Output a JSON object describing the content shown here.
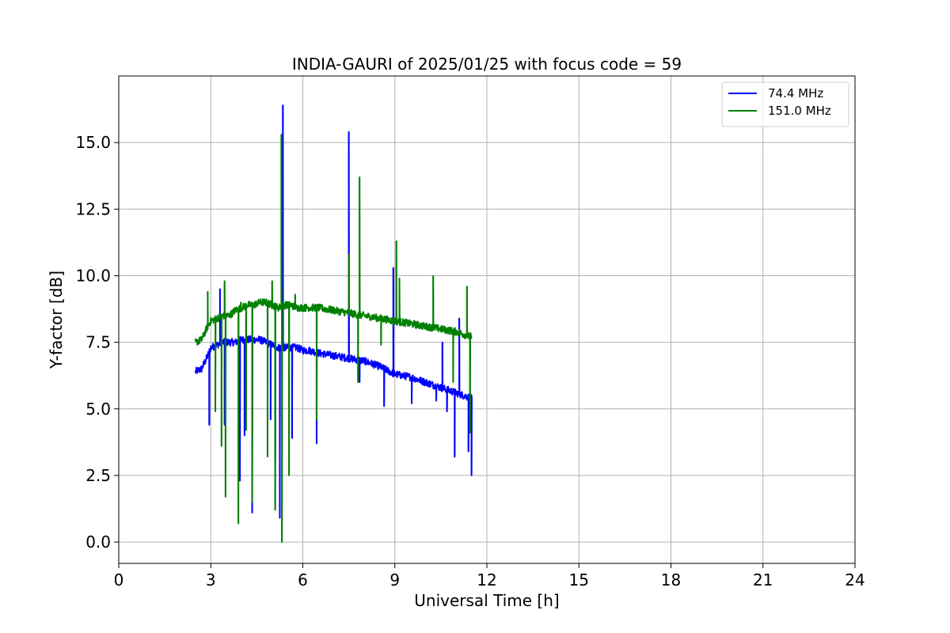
{
  "chart_data": {
    "type": "line",
    "title": "INDIA-GAURI of 2025/01/25 with focus code = 59",
    "xlabel": "Universal Time [h]",
    "ylabel": "Y-factor [dB]",
    "xlim": [
      0,
      24
    ],
    "ylim": [
      -0.8,
      17.5
    ],
    "x_ticks": [
      0,
      3,
      6,
      9,
      12,
      15,
      18,
      21,
      24
    ],
    "x_tick_labels": [
      "0",
      "3",
      "6",
      "9",
      "12",
      "15",
      "18",
      "21",
      "24"
    ],
    "y_ticks": [
      0,
      2.5,
      5,
      7.5,
      10,
      12.5,
      15
    ],
    "y_tick_labels": [
      "0.0",
      "2.5",
      "5.0",
      "7.5",
      "10.0",
      "12.5",
      "15.0"
    ],
    "grid": true,
    "legend_position": "top-right",
    "series": [
      {
        "name": " 74.4 MHz",
        "color": "#0000ff",
        "x": [
          2.5,
          2.7,
          2.9,
          3.0,
          3.2,
          3.4,
          3.6,
          3.8,
          4.0,
          4.2,
          4.4,
          4.6,
          4.8,
          5.0,
          5.2,
          5.4,
          5.6,
          5.8,
          6.0,
          6.2,
          6.5,
          7.0,
          7.5,
          8.0,
          8.5,
          9.0,
          9.5,
          10.0,
          10.5,
          11.0,
          11.5
        ],
        "values": [
          6.4,
          6.5,
          7.0,
          7.3,
          7.4,
          7.5,
          7.5,
          7.5,
          7.6,
          7.6,
          7.6,
          7.6,
          7.5,
          7.4,
          7.3,
          7.3,
          7.3,
          7.3,
          7.2,
          7.2,
          7.1,
          7.0,
          6.9,
          6.8,
          6.6,
          6.3,
          6.2,
          6.0,
          5.8,
          5.6,
          5.4
        ],
        "spikes": [
          [
            2.95,
            4.4
          ],
          [
            3.3,
            9.5
          ],
          [
            3.45,
            4.4
          ],
          [
            3.95,
            2.3
          ],
          [
            4.1,
            4.0
          ],
          [
            4.35,
            1.1
          ],
          [
            4.95,
            4.6
          ],
          [
            5.1,
            3.0
          ],
          [
            5.25,
            0.9
          ],
          [
            5.35,
            16.4
          ],
          [
            5.65,
            3.9
          ],
          [
            6.45,
            3.7
          ],
          [
            7.5,
            15.4
          ],
          [
            7.85,
            6.0
          ],
          [
            8.65,
            5.1
          ],
          [
            8.95,
            10.3
          ],
          [
            9.55,
            5.2
          ],
          [
            10.35,
            5.3
          ],
          [
            10.55,
            7.5
          ],
          [
            10.7,
            4.9
          ],
          [
            10.95,
            3.2
          ],
          [
            11.1,
            8.4
          ],
          [
            11.4,
            3.4
          ],
          [
            11.5,
            2.5
          ]
        ]
      },
      {
        "name": "151.0 MHz",
        "color": "#008000",
        "x": [
          2.5,
          2.7,
          2.9,
          3.0,
          3.2,
          3.4,
          3.6,
          3.8,
          4.0,
          4.2,
          4.4,
          4.6,
          4.8,
          5.0,
          5.2,
          5.4,
          5.6,
          5.8,
          6.0,
          6.2,
          6.5,
          7.0,
          7.5,
          8.0,
          8.5,
          9.0,
          9.5,
          10.0,
          10.5,
          11.0,
          11.5
        ],
        "values": [
          7.5,
          7.6,
          8.1,
          8.3,
          8.4,
          8.5,
          8.5,
          8.7,
          8.8,
          8.9,
          8.9,
          9.0,
          9.0,
          8.9,
          8.8,
          8.9,
          8.9,
          8.8,
          8.8,
          8.8,
          8.8,
          8.7,
          8.6,
          8.5,
          8.4,
          8.3,
          8.2,
          8.1,
          8.0,
          7.9,
          7.7
        ],
        "spikes": [
          [
            2.9,
            9.4
          ],
          [
            3.15,
            4.9
          ],
          [
            3.35,
            3.6
          ],
          [
            3.45,
            9.8
          ],
          [
            3.48,
            1.7
          ],
          [
            3.9,
            0.7
          ],
          [
            3.98,
            9.0
          ],
          [
            4.15,
            4.2
          ],
          [
            4.35,
            1.5
          ],
          [
            4.85,
            3.2
          ],
          [
            5.0,
            9.8
          ],
          [
            5.1,
            1.2
          ],
          [
            5.3,
            15.3
          ],
          [
            5.32,
            0.0
          ],
          [
            5.55,
            2.5
          ],
          [
            5.75,
            9.3
          ],
          [
            6.45,
            4.6
          ],
          [
            7.5,
            10.8
          ],
          [
            7.8,
            6.0
          ],
          [
            7.85,
            13.7
          ],
          [
            8.55,
            7.4
          ],
          [
            9.05,
            11.3
          ],
          [
            9.15,
            9.9
          ],
          [
            10.25,
            10.0
          ],
          [
            10.9,
            6.0
          ],
          [
            11.0,
            7.8
          ],
          [
            11.35,
            9.6
          ],
          [
            11.45,
            4.1
          ]
        ]
      }
    ]
  }
}
